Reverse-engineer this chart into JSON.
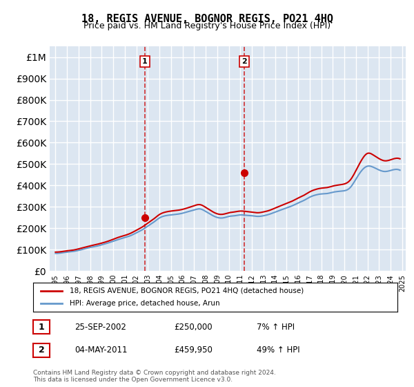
{
  "title": "18, REGIS AVENUE, BOGNOR REGIS, PO21 4HQ",
  "subtitle": "Price paid vs. HM Land Registry's House Price Index (HPI)",
  "xlabel": "",
  "ylabel": "",
  "background_color": "#ffffff",
  "plot_bg_color": "#dce6f1",
  "grid_color": "#ffffff",
  "sale1": {
    "date": 2002.73,
    "price": 250000,
    "label": "1",
    "text": "25-SEP-2002",
    "amount": "£250,000",
    "pct": "7% ↑ HPI"
  },
  "sale2": {
    "date": 2011.34,
    "price": 459950,
    "label": "2",
    "text": "04-MAY-2011",
    "amount": "£459,950",
    "pct": "49% ↑ HPI"
  },
  "legend_line1": "18, REGIS AVENUE, BOGNOR REGIS, PO21 4HQ (detached house)",
  "legend_line2": "HPI: Average price, detached house, Arun",
  "footer": "Contains HM Land Registry data © Crown copyright and database right 2024.\nThis data is licensed under the Open Government Licence v3.0.",
  "red_color": "#cc0000",
  "blue_color": "#6699cc",
  "dashed_red": "#cc0000",
  "ylim_max": 1050000,
  "ylim_min": 0
}
